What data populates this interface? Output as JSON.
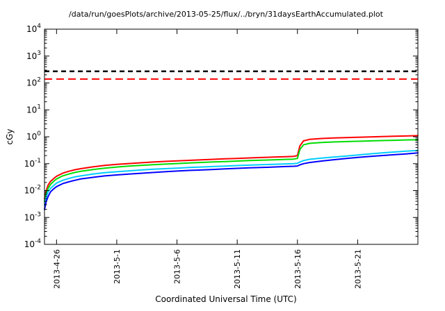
{
  "header": {
    "title": "/data/run/goesPlots/archive/2013-05-25/flux/../bryn/31daysEarthAccumulated.plot"
  },
  "chart_data": {
    "type": "line",
    "title": "/data/run/goesPlots/archive/2013-05-25/flux/../bryn/31daysEarthAccumulated.plot",
    "xlabel": "Coordinated Universal Time (UTC)",
    "ylabel": "cGy",
    "yscale": "log",
    "ylim": [
      0.0001,
      10000
    ],
    "xlim_days": [
      0,
      31
    ],
    "grid": false,
    "legend": "none",
    "ytick_exponents": [
      4,
      3,
      2,
      1,
      0,
      -1,
      -2,
      -3,
      -4
    ],
    "xticks": [
      {
        "day": 1,
        "label": "2013-4-26"
      },
      {
        "day": 6,
        "label": "2013-5-1"
      },
      {
        "day": 11,
        "label": "2013-5-6"
      },
      {
        "day": 16,
        "label": "2013-5-11"
      },
      {
        "day": 21,
        "label": "2013-5-16"
      },
      {
        "day": 26,
        "label": "2013-5-21"
      }
    ],
    "reference_lines": [
      {
        "name": "black-dashed-limit",
        "value": 270,
        "color": "#000000",
        "style": "dashed",
        "width": 2.5,
        "dash": "7 5"
      },
      {
        "name": "red-dashed-limit",
        "value": 140,
        "color": "#ff0000",
        "style": "dashed",
        "width": 2,
        "dash": "11 6"
      }
    ],
    "x_days": [
      0,
      0.15,
      0.3,
      0.5,
      0.8,
      1,
      1.5,
      2,
      2.5,
      3,
      4,
      5,
      6,
      7,
      8,
      9,
      10,
      11,
      12,
      13,
      14,
      15,
      16,
      17,
      18,
      19,
      20,
      20.7,
      21,
      21.2,
      21.5,
      22,
      23,
      24,
      25,
      26,
      27,
      28,
      29,
      30,
      31
    ],
    "series": [
      {
        "name": "red",
        "color": "#ff0000",
        "values": [
          0.005,
          0.01,
          0.016,
          0.022,
          0.029,
          0.034,
          0.044,
          0.052,
          0.059,
          0.065,
          0.076,
          0.086,
          0.094,
          0.101,
          0.108,
          0.115,
          0.121,
          0.127,
          0.133,
          0.139,
          0.145,
          0.151,
          0.157,
          0.163,
          0.169,
          0.175,
          0.182,
          0.187,
          0.2,
          0.45,
          0.7,
          0.8,
          0.86,
          0.9,
          0.93,
          0.96,
          0.99,
          1.01,
          1.04,
          1.07,
          1.1
        ]
      },
      {
        "name": "green",
        "color": "#00dd00",
        "values": [
          0.004,
          0.008,
          0.012,
          0.017,
          0.023,
          0.027,
          0.035,
          0.041,
          0.047,
          0.052,
          0.06,
          0.068,
          0.075,
          0.081,
          0.086,
          0.091,
          0.096,
          0.101,
          0.106,
          0.111,
          0.116,
          0.12,
          0.125,
          0.13,
          0.134,
          0.139,
          0.144,
          0.148,
          0.158,
          0.33,
          0.5,
          0.57,
          0.61,
          0.64,
          0.66,
          0.68,
          0.7,
          0.72,
          0.74,
          0.76,
          0.78
        ]
      },
      {
        "name": "cyan",
        "color": "#00ccff",
        "values": [
          0.003,
          0.006,
          0.009,
          0.012,
          0.016,
          0.019,
          0.024,
          0.028,
          0.032,
          0.035,
          0.041,
          0.046,
          0.05,
          0.054,
          0.058,
          0.062,
          0.065,
          0.068,
          0.072,
          0.075,
          0.078,
          0.081,
          0.085,
          0.088,
          0.091,
          0.094,
          0.098,
          0.1,
          0.103,
          0.115,
          0.13,
          0.145,
          0.16,
          0.175,
          0.19,
          0.21,
          0.23,
          0.25,
          0.27,
          0.29,
          0.31
        ]
      },
      {
        "name": "blue",
        "color": "#0000ff",
        "values": [
          0.002,
          0.004,
          0.006,
          0.009,
          0.012,
          0.014,
          0.018,
          0.021,
          0.024,
          0.027,
          0.031,
          0.035,
          0.038,
          0.041,
          0.044,
          0.047,
          0.05,
          0.053,
          0.056,
          0.058,
          0.061,
          0.064,
          0.067,
          0.07,
          0.072,
          0.075,
          0.078,
          0.08,
          0.082,
          0.09,
          0.1,
          0.11,
          0.125,
          0.14,
          0.155,
          0.17,
          0.185,
          0.2,
          0.215,
          0.23,
          0.25
        ]
      }
    ]
  }
}
